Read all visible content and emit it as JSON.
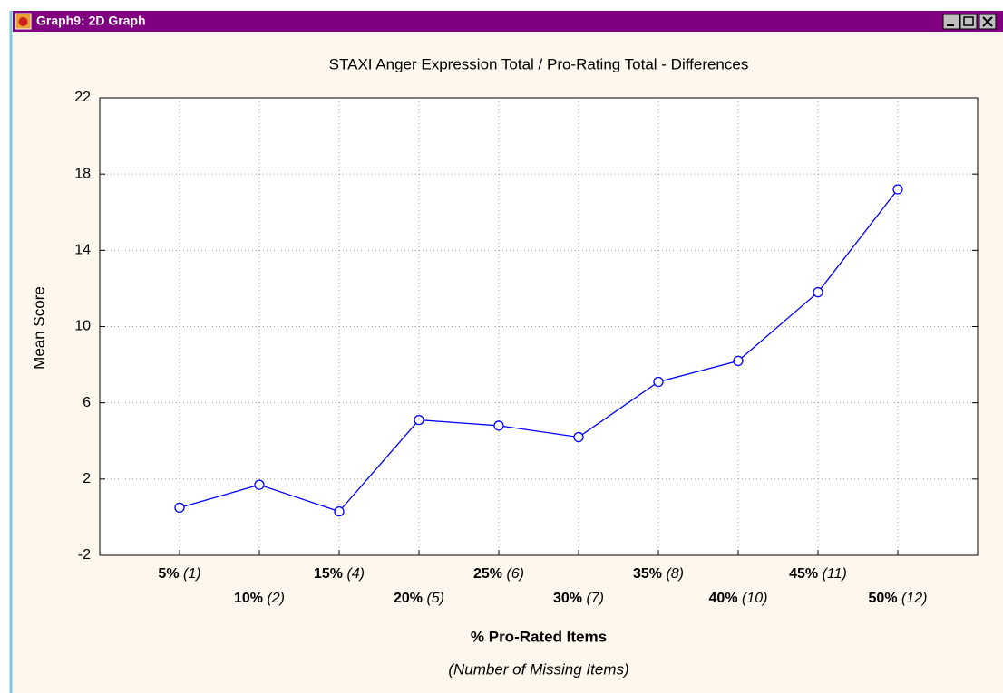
{
  "window": {
    "title": "Graph9: 2D Graph"
  },
  "chart_data": {
    "type": "line",
    "title": "STAXI Anger Expression Total / Pro-Rating Total - Differences",
    "ylabel": "Mean Score",
    "xlabel": "% Pro-Rated Items",
    "xsublabel": "(Number of Missing Items)",
    "categories": [
      "5%",
      "10%",
      "15%",
      "20%",
      "25%",
      "30%",
      "35%",
      "40%",
      "45%",
      "50%"
    ],
    "category_notes": [
      "(1)",
      "(2)",
      "(4)",
      "(5)",
      "(6)",
      "(7)",
      "(8)",
      "(10)",
      "(11)",
      "(12)"
    ],
    "series": [
      {
        "name": "Mean Score",
        "color": "#0000ff",
        "values": [
          0.5,
          1.7,
          0.3,
          5.1,
          4.8,
          4.2,
          7.1,
          8.2,
          11.8,
          17.2
        ]
      }
    ],
    "ylim": [
      -2,
      22
    ],
    "yticks": [
      -2,
      2,
      6,
      10,
      14,
      18,
      22
    ],
    "grid": true
  }
}
